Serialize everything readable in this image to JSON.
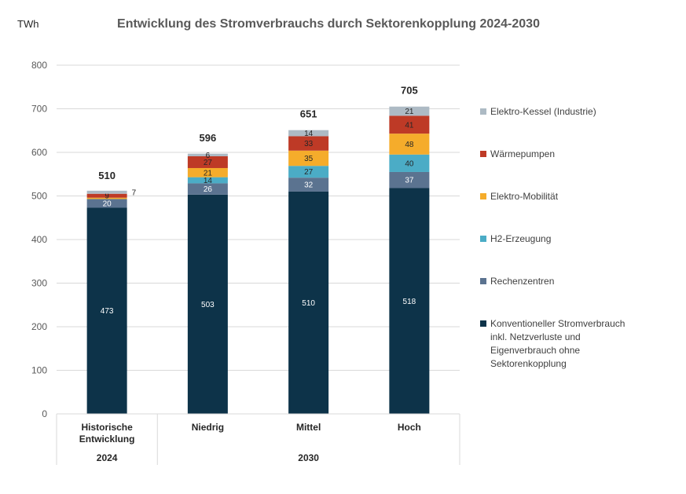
{
  "chart_data": {
    "type": "bar",
    "stacked": true,
    "title": "Entwicklung des Stromverbrauchs durch Sektorenkopplung 2024-2030",
    "ylabel": "TWh",
    "ylim": [
      0,
      800
    ],
    "yticks": [
      "0",
      "100",
      "200",
      "300",
      "400",
      "500",
      "600",
      "700",
      "800"
    ],
    "grid": true,
    "legend_position": "right",
    "categories": [
      "Historische Entwicklung",
      "Niedrig",
      "Mittel",
      "Hoch"
    ],
    "category_groups": [
      {
        "label": "2024",
        "categories": [
          "Historische Entwicklung"
        ]
      },
      {
        "label": "2030",
        "categories": [
          "Niedrig",
          "Mittel",
          "Hoch"
        ]
      }
    ],
    "totals": [
      510,
      596,
      651,
      705
    ],
    "series": [
      {
        "name": "Konventioneller Stromverbrauch inkl. Netzverluste und Eigenverbrauch ohne Sektorenkopplung",
        "color": "#0d3349",
        "values": [
          473,
          503,
          510,
          518
        ]
      },
      {
        "name": "Rechenzentren",
        "color": "#5b7390",
        "values": [
          20,
          26,
          32,
          37
        ]
      },
      {
        "name": "H2-Erzeugung",
        "color": "#4bacc6",
        "values": [
          0,
          14,
          27,
          40
        ]
      },
      {
        "name": "Elektro-Mobilität",
        "color": "#f5ac2b",
        "values": [
          3,
          21,
          35,
          48
        ]
      },
      {
        "name": "Wärmepumpen",
        "color": "#be3a26",
        "values": [
          9,
          27,
          33,
          41
        ]
      },
      {
        "name": "Elektro-Kessel (Industrie)",
        "color": "#adbac4",
        "values": [
          7,
          6,
          14,
          21
        ]
      }
    ],
    "labels": [
      [
        "473",
        "503",
        "510",
        "518"
      ],
      [
        "20",
        "26",
        "32",
        "37"
      ],
      [
        "",
        "14",
        "27",
        "40"
      ],
      [
        "",
        "21",
        "35",
        "48"
      ],
      [
        "9",
        "27",
        "33",
        "41"
      ],
      [
        "7",
        "6",
        "14",
        "21"
      ]
    ],
    "label_colors": [
      "#ffffff",
      "#ffffff",
      "#262626",
      "#262626",
      "#262626",
      "#262626"
    ]
  }
}
